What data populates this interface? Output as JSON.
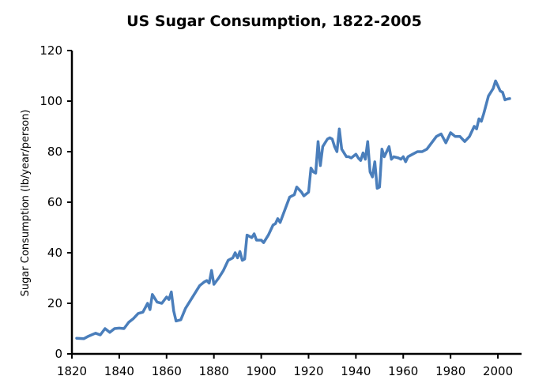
{
  "chart_data": {
    "type": "line",
    "title": "US Sugar Consumption, 1822-2005",
    "xlabel": "",
    "ylabel": "Sugar Consumption (lb/year/person)",
    "xlim": [
      1820,
      2010
    ],
    "ylim": [
      0,
      120
    ],
    "xticks": [
      1820,
      1840,
      1860,
      1880,
      1900,
      1920,
      1940,
      1960,
      1980,
      2000
    ],
    "yticks": [
      0,
      20,
      40,
      60,
      80,
      100,
      120
    ],
    "grid": false,
    "legend": "none",
    "line_color": "#4a7ebb",
    "series": [
      {
        "x": [
          1822,
          1825,
          1827,
          1830,
          1832,
          1834,
          1836,
          1838,
          1840,
          1842,
          1844,
          1846,
          1848,
          1850,
          1852,
          1853,
          1854,
          1856,
          1858,
          1860,
          1861,
          1862,
          1863,
          1864,
          1866,
          1868,
          1870,
          1872,
          1874,
          1876,
          1877,
          1878,
          1879,
          1880,
          1882,
          1884,
          1886,
          1888,
          1889,
          1890,
          1891,
          1892,
          1893,
          1894,
          1896,
          1897,
          1898,
          1900,
          1901,
          1903,
          1905,
          1906,
          1907,
          1908,
          1910,
          1912,
          1914,
          1915,
          1916,
          1917,
          1918,
          1920,
          1921,
          1922,
          1923,
          1924,
          1925,
          1926,
          1928,
          1929,
          1930,
          1931,
          1932,
          1933,
          1934,
          1936,
          1937,
          1938,
          1940,
          1941,
          1942,
          1943,
          1944,
          1945,
          1946,
          1947,
          1948,
          1949,
          1950,
          1951,
          1952,
          1953,
          1954,
          1955,
          1956,
          1958,
          1959,
          1960,
          1961,
          1962,
          1964,
          1966,
          1968,
          1970,
          1972,
          1974,
          1976,
          1978,
          1980,
          1982,
          1984,
          1986,
          1988,
          1990,
          1991,
          1992,
          1993,
          1994,
          1996,
          1998,
          1999,
          2000,
          2001,
          2002,
          2003,
          2004,
          2005
        ],
        "y": [
          6.2,
          6,
          7,
          8.2,
          7.5,
          10,
          8.5,
          10,
          10.2,
          10,
          12.5,
          14,
          16,
          16.5,
          20,
          17.5,
          23.5,
          20.5,
          20,
          22.5,
          21.5,
          24.5,
          17,
          13,
          13.5,
          18,
          21,
          24,
          27,
          28.5,
          29,
          28,
          33,
          27.5,
          30,
          33,
          37,
          38,
          40,
          38,
          40.5,
          37,
          37.5,
          47,
          46,
          47.5,
          45,
          45,
          44,
          47,
          51,
          51.5,
          53.5,
          52,
          57,
          62,
          63,
          66,
          65,
          64,
          62.5,
          64,
          73.5,
          72,
          71.5,
          84,
          74.5,
          82,
          85,
          85.5,
          85,
          82,
          80,
          89,
          81,
          78,
          78,
          77.5,
          79,
          77.5,
          76.5,
          79.5,
          77,
          84,
          72,
          70,
          76,
          65.5,
          66,
          81,
          78,
          80,
          82,
          77,
          78,
          77.5,
          77,
          78,
          76,
          78,
          79,
          80,
          80,
          81,
          83.5,
          86,
          87,
          83.5,
          87.5,
          86,
          86,
          84,
          86,
          90,
          89,
          93,
          92,
          95,
          102,
          105,
          108,
          106,
          104,
          103.5,
          100.5,
          100.8,
          101
        ]
      }
    ]
  }
}
